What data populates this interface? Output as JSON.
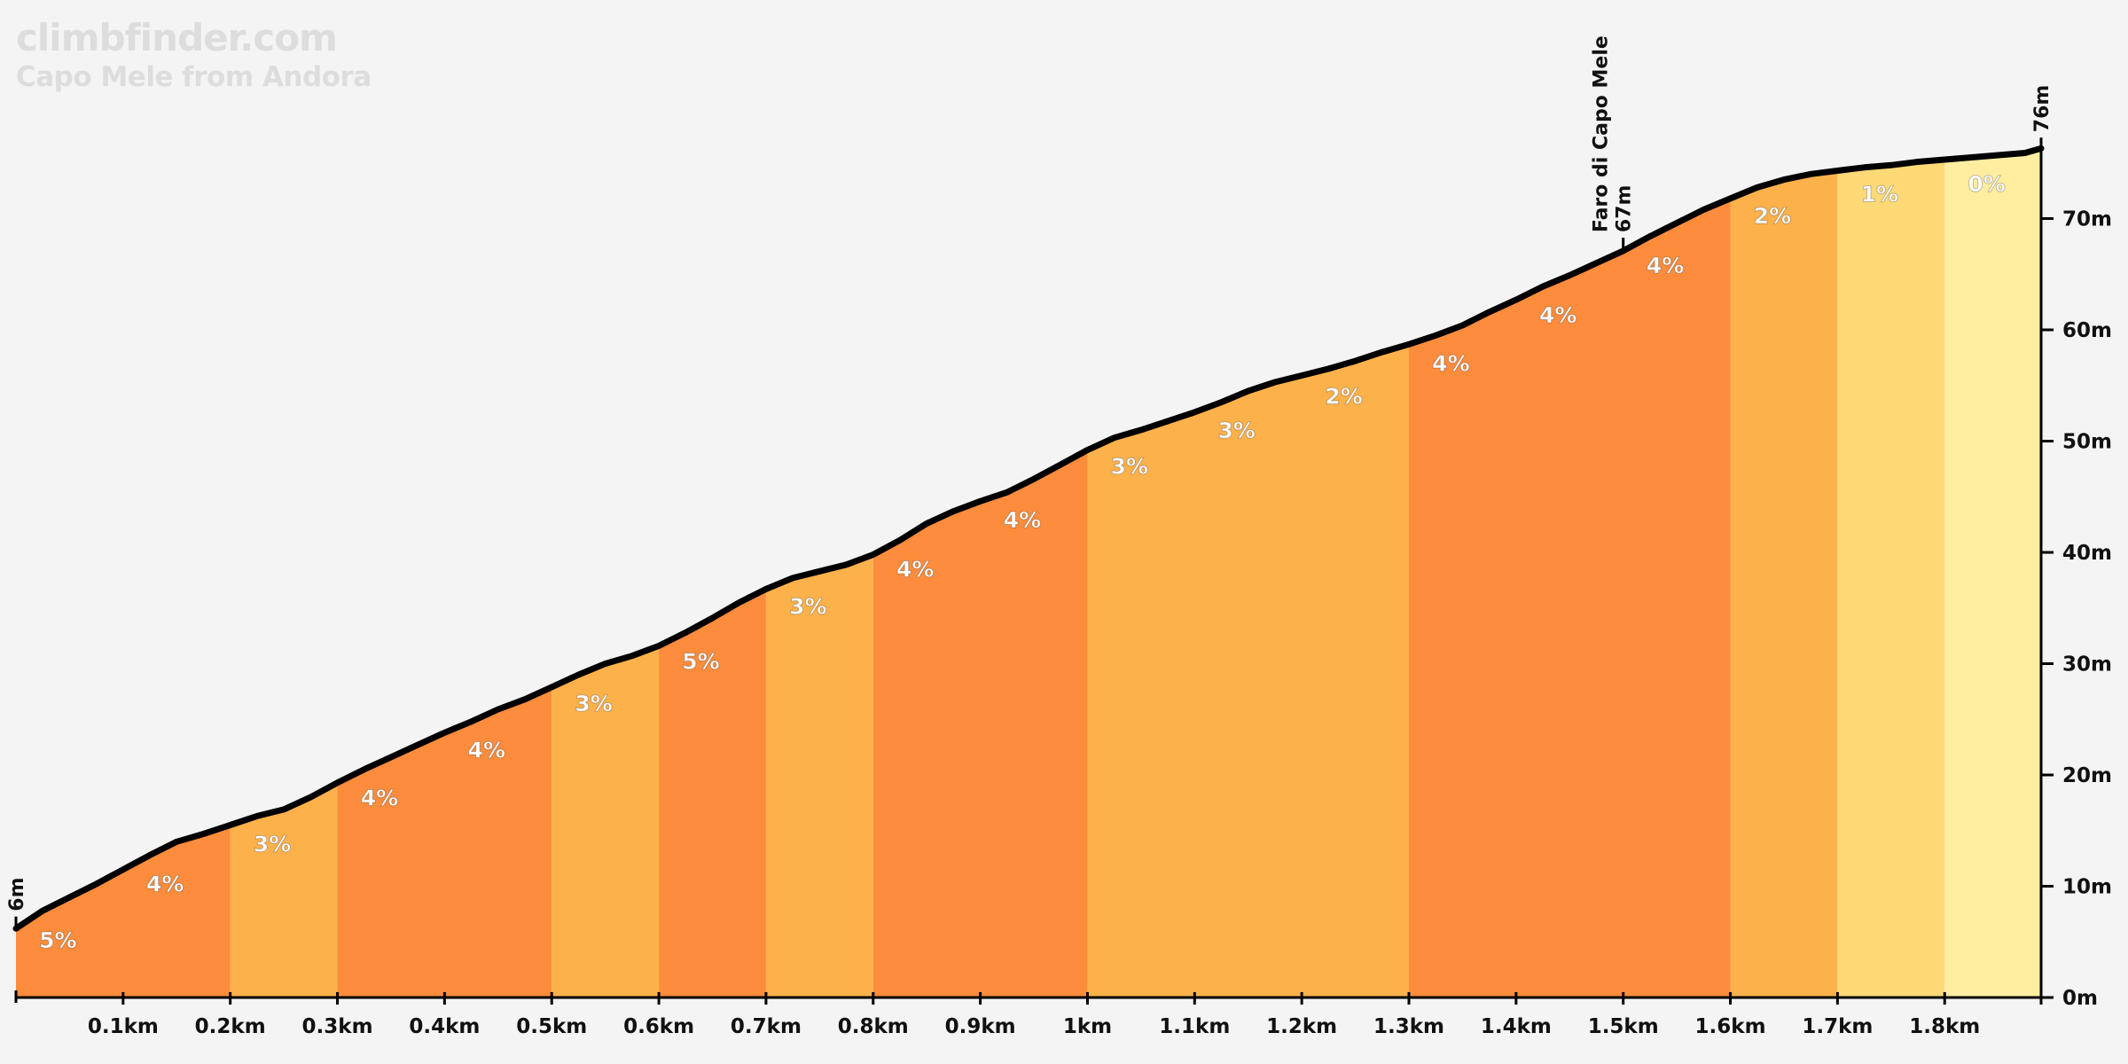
{
  "brand": {
    "site": "climbfinder.com",
    "climb_name": "Capo Mele from Andora"
  },
  "chart_data": {
    "type": "area",
    "x_unit": "km",
    "y_unit": "m",
    "xlim": [
      0,
      1.89
    ],
    "ylim": [
      0,
      76
    ],
    "x_ticks": [
      {
        "value": 0.1,
        "label": "0.1km"
      },
      {
        "value": 0.2,
        "label": "0.2km"
      },
      {
        "value": 0.3,
        "label": "0.3km"
      },
      {
        "value": 0.4,
        "label": "0.4km"
      },
      {
        "value": 0.5,
        "label": "0.5km"
      },
      {
        "value": 0.6,
        "label": "0.6km"
      },
      {
        "value": 0.7,
        "label": "0.7km"
      },
      {
        "value": 0.8,
        "label": "0.8km"
      },
      {
        "value": 0.9,
        "label": "0.9km"
      },
      {
        "value": 1.0,
        "label": "1km"
      },
      {
        "value": 1.1,
        "label": "1.1km"
      },
      {
        "value": 1.2,
        "label": "1.2km"
      },
      {
        "value": 1.3,
        "label": "1.3km"
      },
      {
        "value": 1.4,
        "label": "1.4km"
      },
      {
        "value": 1.5,
        "label": "1.5km"
      },
      {
        "value": 1.6,
        "label": "1.6km"
      },
      {
        "value": 1.7,
        "label": "1.7km"
      },
      {
        "value": 1.8,
        "label": "1.8km"
      }
    ],
    "y_ticks": [
      {
        "value": 0,
        "label": "0m"
      },
      {
        "value": 10,
        "label": "10m"
      },
      {
        "value": 20,
        "label": "20m"
      },
      {
        "value": 30,
        "label": "30m"
      },
      {
        "value": 40,
        "label": "40m"
      },
      {
        "value": 50,
        "label": "50m"
      },
      {
        "value": 60,
        "label": "60m"
      },
      {
        "value": 70,
        "label": "70m"
      }
    ],
    "profile": [
      [
        0,
        6.2
      ],
      [
        0.025,
        7.8
      ],
      [
        0.05,
        9.0
      ],
      [
        0.075,
        10.2
      ],
      [
        0.1,
        11.5
      ],
      [
        0.125,
        12.8
      ],
      [
        0.15,
        14.0
      ],
      [
        0.175,
        14.7
      ],
      [
        0.2,
        15.5
      ],
      [
        0.225,
        16.3
      ],
      [
        0.25,
        16.9
      ],
      [
        0.275,
        18.0
      ],
      [
        0.3,
        19.3
      ],
      [
        0.325,
        20.5
      ],
      [
        0.35,
        21.6
      ],
      [
        0.375,
        22.7
      ],
      [
        0.4,
        23.8
      ],
      [
        0.425,
        24.8
      ],
      [
        0.45,
        25.9
      ],
      [
        0.475,
        26.8
      ],
      [
        0.5,
        27.9
      ],
      [
        0.525,
        29.0
      ],
      [
        0.55,
        30.0
      ],
      [
        0.575,
        30.7
      ],
      [
        0.6,
        31.6
      ],
      [
        0.625,
        32.8
      ],
      [
        0.65,
        34.1
      ],
      [
        0.675,
        35.5
      ],
      [
        0.7,
        36.7
      ],
      [
        0.725,
        37.7
      ],
      [
        0.75,
        38.3
      ],
      [
        0.775,
        38.9
      ],
      [
        0.8,
        39.8
      ],
      [
        0.825,
        41.1
      ],
      [
        0.85,
        42.6
      ],
      [
        0.875,
        43.7
      ],
      [
        0.9,
        44.6
      ],
      [
        0.925,
        45.4
      ],
      [
        0.95,
        46.6
      ],
      [
        0.975,
        47.9
      ],
      [
        1.0,
        49.2
      ],
      [
        1.025,
        50.3
      ],
      [
        1.05,
        51.0
      ],
      [
        1.075,
        51.8
      ],
      [
        1.1,
        52.6
      ],
      [
        1.125,
        53.5
      ],
      [
        1.15,
        54.5
      ],
      [
        1.175,
        55.3
      ],
      [
        1.2,
        55.9
      ],
      [
        1.225,
        56.5
      ],
      [
        1.25,
        57.2
      ],
      [
        1.275,
        58.0
      ],
      [
        1.3,
        58.7
      ],
      [
        1.325,
        59.5
      ],
      [
        1.35,
        60.4
      ],
      [
        1.375,
        61.6
      ],
      [
        1.4,
        62.7
      ],
      [
        1.425,
        63.9
      ],
      [
        1.45,
        64.9
      ],
      [
        1.475,
        66.0
      ],
      [
        1.5,
        67.1
      ],
      [
        1.525,
        68.4
      ],
      [
        1.55,
        69.6
      ],
      [
        1.575,
        70.8
      ],
      [
        1.6,
        71.8
      ],
      [
        1.625,
        72.8
      ],
      [
        1.65,
        73.5
      ],
      [
        1.675,
        74.0
      ],
      [
        1.7,
        74.3
      ],
      [
        1.725,
        74.6
      ],
      [
        1.75,
        74.8
      ],
      [
        1.775,
        75.1
      ],
      [
        1.8,
        75.3
      ],
      [
        1.825,
        75.5
      ],
      [
        1.85,
        75.7
      ],
      [
        1.875,
        75.9
      ],
      [
        1.89,
        76.3
      ]
    ],
    "segments": [
      {
        "from": 0.0,
        "to": 0.2,
        "gradient": "5%",
        "color": "#fd8c3c",
        "label_pos": 0.02
      },
      {
        "from": 0.0,
        "to": 0.2,
        "gradient": "4%",
        "color": "#fd8c3c",
        "label_pos": 0.12
      },
      {
        "from": 0.2,
        "to": 0.3,
        "gradient": "3%",
        "color": "#fdb14b",
        "label_pos": 0.22
      },
      {
        "from": 0.3,
        "to": 0.5,
        "gradient": "4%",
        "color": "#fd8c3c",
        "label_pos": 0.32
      },
      {
        "from": 0.3,
        "to": 0.5,
        "gradient": "4%",
        "color": "#fd8c3c",
        "label_pos": 0.42
      },
      {
        "from": 0.5,
        "to": 0.6,
        "gradient": "3%",
        "color": "#fdb14b",
        "label_pos": 0.52
      },
      {
        "from": 0.6,
        "to": 0.7,
        "gradient": "5%",
        "color": "#fd8c3c",
        "label_pos": 0.62
      },
      {
        "from": 0.7,
        "to": 0.8,
        "gradient": "3%",
        "color": "#fdb14b",
        "label_pos": 0.72
      },
      {
        "from": 0.8,
        "to": 1.0,
        "gradient": "4%",
        "color": "#fd8c3c",
        "label_pos": 0.82
      },
      {
        "from": 0.8,
        "to": 1.0,
        "gradient": "4%",
        "color": "#fd8c3c",
        "label_pos": 0.92
      },
      {
        "from": 1.0,
        "to": 1.3,
        "gradient": "3%",
        "color": "#fdb14b",
        "label_pos": 1.02
      },
      {
        "from": 1.0,
        "to": 1.3,
        "gradient": "3%",
        "color": "#fdb14b",
        "label_pos": 1.12
      },
      {
        "from": 1.0,
        "to": 1.3,
        "gradient": "2%",
        "color": "#fdb14b",
        "label_pos": 1.22
      },
      {
        "from": 1.3,
        "to": 1.6,
        "gradient": "4%",
        "color": "#fd8c3c",
        "label_pos": 1.32
      },
      {
        "from": 1.3,
        "to": 1.6,
        "gradient": "4%",
        "color": "#fd8c3c",
        "label_pos": 1.42
      },
      {
        "from": 1.3,
        "to": 1.6,
        "gradient": "4%",
        "color": "#fd8c3c",
        "label_pos": 1.52
      },
      {
        "from": 1.6,
        "to": 1.7,
        "gradient": "2%",
        "color": "#fdb14b",
        "label_pos": 1.62
      },
      {
        "from": 1.7,
        "to": 1.8,
        "gradient": "1%",
        "color": "#fed976",
        "label_pos": 1.72
      },
      {
        "from": 1.8,
        "to": 1.89,
        "gradient": "0%",
        "color": "#ffeda0",
        "label_pos": 1.82
      }
    ],
    "annotations": [
      {
        "x": 0,
        "elevation": 6,
        "label": "6m"
      },
      {
        "x": 1.5,
        "elevation": 67,
        "label": "67m",
        "name": "Faro di Capo Mele"
      },
      {
        "x": 1.89,
        "elevation": 76,
        "label": "76m"
      }
    ],
    "grid": false,
    "legend": "none"
  }
}
